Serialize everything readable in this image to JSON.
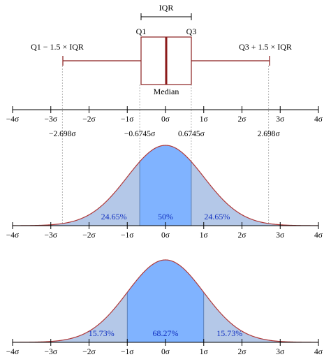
{
  "colors": {
    "box": "#8a1f1f",
    "median": "#8b1a1a",
    "curve": "#b03a3a",
    "fill_center": "#80b3ff",
    "fill_tail": "#b4c8e8",
    "percent_text": "#1030c0"
  },
  "boxplot": {
    "iqr_label": "IQR",
    "q1_label": "Q1",
    "q3_label": "Q3",
    "median_label": "Median",
    "lower_whisker_label": "Q1 − 1.5 × IQR",
    "upper_whisker_label": "Q3 + 1.5 × IQR"
  },
  "axis_ticks": [
    "−4σ",
    "−3σ",
    "−2σ",
    "−1σ",
    "0σ",
    "1σ",
    "2σ",
    "3σ",
    "4σ"
  ],
  "tick_values": [
    -4,
    -3,
    -2,
    -1,
    0,
    1,
    2,
    3,
    4
  ],
  "quantile_labels": [
    "−2.698σ",
    "−0.6745σ",
    "0.6745σ",
    "2.698σ"
  ],
  "quantile_values": [
    -2.698,
    -0.6745,
    0.6745,
    2.698
  ],
  "dist_iqr": {
    "regions": [
      {
        "from": -4,
        "to": -0.6745,
        "label": "24.65%"
      },
      {
        "from": -0.6745,
        "to": 0.6745,
        "label": "50%"
      },
      {
        "from": 0.6745,
        "to": 4,
        "label": "24.65%"
      }
    ]
  },
  "dist_sigma": {
    "regions": [
      {
        "from": -4,
        "to": -1,
        "label": "15.73%"
      },
      {
        "from": -1,
        "to": 1,
        "label": "68.27%"
      },
      {
        "from": 1,
        "to": 4,
        "label": "15.73%"
      }
    ]
  }
}
